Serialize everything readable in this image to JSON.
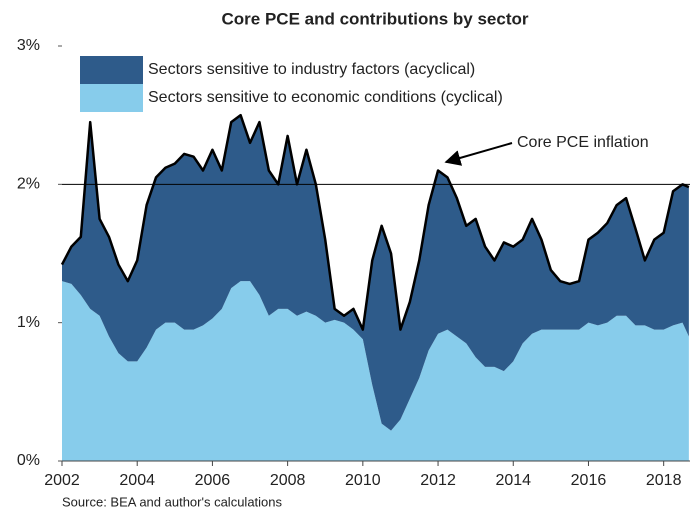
{
  "chart_data": {
    "type": "stacked-area",
    "title": "Core PCE and contributions by sector",
    "source": "Source: BEA and author's calculations",
    "annotation": "Core PCE inflation",
    "x": [
      2002,
      2002.25,
      2002.5,
      2002.75,
      2003,
      2003.25,
      2003.5,
      2003.75,
      2004,
      2004.25,
      2004.5,
      2004.75,
      2005,
      2005.25,
      2005.5,
      2005.75,
      2006,
      2006.25,
      2006.5,
      2006.75,
      2007,
      2007.25,
      2007.5,
      2007.75,
      2008,
      2008.25,
      2008.5,
      2008.75,
      2009,
      2009.25,
      2009.5,
      2009.75,
      2010,
      2010.25,
      2010.5,
      2010.75,
      2011,
      2011.25,
      2011.5,
      2011.75,
      2012,
      2012.25,
      2012.5,
      2012.75,
      2013,
      2013.25,
      2013.5,
      2013.75,
      2014,
      2014.25,
      2014.5,
      2014.75,
      2015,
      2015.25,
      2015.5,
      2015.75,
      2016,
      2016.25,
      2016.5,
      2016.75,
      2017,
      2017.25,
      2017.5,
      2017.75,
      2018,
      2018.25,
      2018.5,
      2018.67
    ],
    "series": [
      {
        "name": "Sectors sensitive to economic conditions (cyclical)",
        "color": "#87cceb",
        "values": [
          1.3,
          1.28,
          1.2,
          1.1,
          1.05,
          0.9,
          0.78,
          0.72,
          0.72,
          0.82,
          0.95,
          1.0,
          1.0,
          0.95,
          0.95,
          0.98,
          1.03,
          1.1,
          1.25,
          1.3,
          1.3,
          1.2,
          1.05,
          1.1,
          1.1,
          1.05,
          1.08,
          1.05,
          1.0,
          1.02,
          1.0,
          0.95,
          0.88,
          0.55,
          0.27,
          0.22,
          0.3,
          0.45,
          0.6,
          0.8,
          0.92,
          0.95,
          0.9,
          0.85,
          0.75,
          0.68,
          0.68,
          0.65,
          0.72,
          0.85,
          0.92,
          0.95,
          0.95,
          0.95,
          0.95,
          0.95,
          1.0,
          0.98,
          1.0,
          1.05,
          1.05,
          0.98,
          0.98,
          0.95,
          0.95,
          0.98,
          1.0,
          0.9
        ]
      },
      {
        "name": "Sectors sensitive to industry factors (acyclical)",
        "color": "#2e5b8a",
        "values": [
          0.12,
          0.27,
          0.42,
          1.35,
          0.7,
          0.72,
          0.64,
          0.58,
          0.73,
          1.03,
          1.1,
          1.12,
          1.15,
          1.27,
          1.25,
          1.12,
          1.22,
          1.0,
          1.2,
          1.2,
          1.0,
          1.25,
          1.05,
          0.9,
          1.25,
          0.95,
          1.17,
          0.95,
          0.6,
          0.08,
          0.05,
          0.15,
          0.07,
          0.9,
          1.43,
          1.28,
          0.65,
          0.7,
          0.85,
          1.05,
          1.18,
          1.1,
          1.0,
          0.85,
          1.0,
          0.87,
          0.77,
          0.93,
          0.83,
          0.75,
          0.83,
          0.65,
          0.43,
          0.35,
          0.33,
          0.35,
          0.6,
          0.67,
          0.72,
          0.8,
          0.85,
          0.7,
          0.47,
          0.65,
          0.7,
          0.97,
          1.0,
          1.08
        ]
      }
    ],
    "xlim": [
      2002,
      2018.7
    ],
    "xticks": [
      2002,
      2004,
      2006,
      2008,
      2010,
      2012,
      2014,
      2016,
      2018
    ],
    "ylim": [
      0,
      3
    ],
    "yticks": [
      {
        "value": 0,
        "label": "0%"
      },
      {
        "value": 1,
        "label": "1%"
      },
      {
        "value": 2,
        "label": "2%"
      },
      {
        "value": 3,
        "label": "3%"
      }
    ],
    "reference_line": 2,
    "line_color": "#000000"
  }
}
